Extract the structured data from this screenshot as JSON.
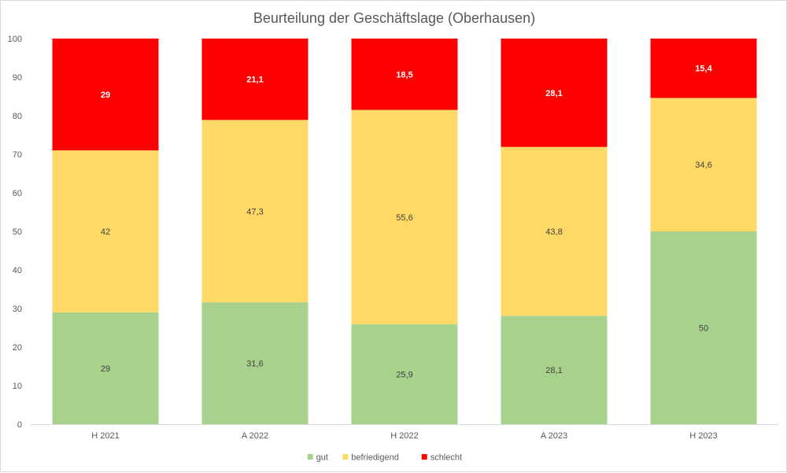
{
  "chart_data": {
    "type": "bar",
    "stacked": true,
    "title": "Beurteilung der Geschäftslage (Oberhausen)",
    "xlabel": "",
    "ylabel": "",
    "ylim": [
      0,
      100
    ],
    "yticks": [
      0,
      10,
      20,
      30,
      40,
      50,
      60,
      70,
      80,
      90,
      100
    ],
    "grid": false,
    "legend": "bottom",
    "categories": [
      "H 2021",
      "A 2022",
      "H 2022",
      "A 2023",
      "H 2023"
    ],
    "series": [
      {
        "name": "gut",
        "color": "#a9d18e",
        "values": [
          29,
          31.6,
          25.9,
          28.1,
          50
        ],
        "labels": [
          "29",
          "31,6",
          "25,9",
          "28,1",
          "50"
        ],
        "label_style": "dark"
      },
      {
        "name": "befriedigend",
        "color": "#ffd966",
        "values": [
          42,
          47.3,
          55.6,
          43.8,
          34.6
        ],
        "labels": [
          "42",
          "47,3",
          "55,6",
          "43,8",
          "34,6"
        ],
        "label_style": "dark"
      },
      {
        "name": "schlecht",
        "color": "#ff0000",
        "values": [
          29,
          21.1,
          18.5,
          28.1,
          15.4
        ],
        "labels": [
          "29",
          "21,1",
          "18,5",
          "28,1",
          "15,4"
        ],
        "label_style": "white"
      }
    ]
  }
}
